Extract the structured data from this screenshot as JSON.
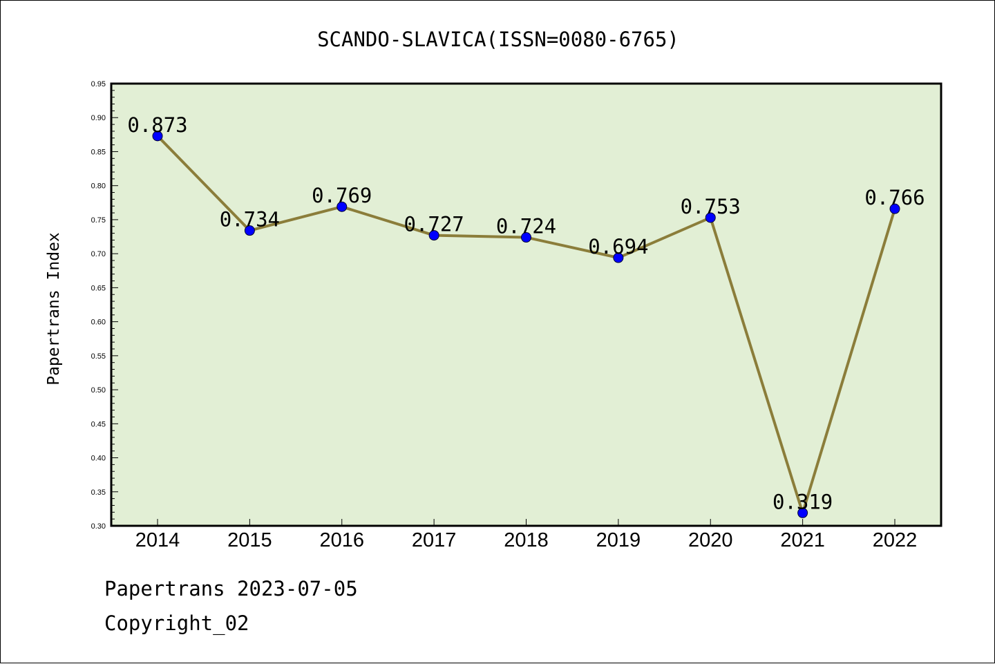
{
  "chart_data": {
    "type": "line",
    "title": "SCANDO-SLAVICA(ISSN=0080-6765)",
    "xlabel": "",
    "ylabel": "Papertrans Index",
    "categories": [
      "2014",
      "2015",
      "2016",
      "2017",
      "2018",
      "2019",
      "2020",
      "2021",
      "2022"
    ],
    "series": [
      {
        "values": [
          0.873,
          0.734,
          0.769,
          0.727,
          0.724,
          0.694,
          0.753,
          0.319,
          0.766
        ],
        "data_labels": [
          "0.873",
          "0.734",
          "0.769",
          "0.727",
          "0.724",
          "0.694",
          "0.753",
          "0.319",
          "0.766"
        ]
      }
    ],
    "ylim": [
      0.3,
      0.95
    ],
    "yticks": [
      "0.30",
      "0.35",
      "0.40",
      "0.45",
      "0.50",
      "0.55",
      "0.60",
      "0.65",
      "0.70",
      "0.75",
      "0.80",
      "0.85",
      "0.90",
      "0.95"
    ],
    "grid": false,
    "legend": "none",
    "colors": {
      "plot_background": "#e2efd5",
      "line": "#8b7d3a",
      "marker": "#0000ff",
      "axes": "#000000"
    }
  },
  "footer": {
    "line1": "Papertrans 2023-07-05",
    "line2": "Copyright_02"
  }
}
